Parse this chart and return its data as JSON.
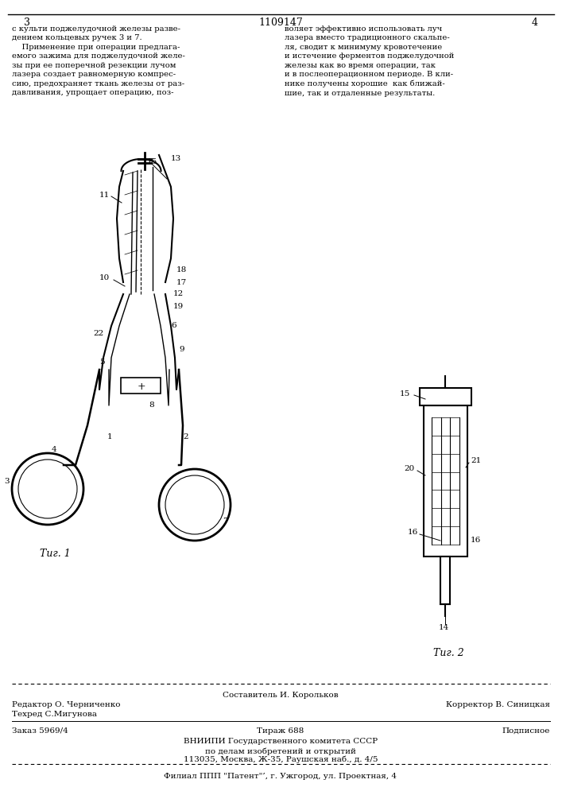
{
  "bg_color": "#ffffff",
  "page_number_left": "3",
  "page_header_center": "1109147",
  "page_number_right": "4",
  "text_left": "с культи поджелудочной железы разве-\nдением кольцевых ручек 3 и 7.\n    Применение при операции предлага-\nемого зажима для поджелудочной желе-\nзы при ее поперечной резекции лучом\nлазера создает равномерную компрес-\nсию, предохраняет ткань железы от раз-\nдавливания, упрощает операцию, поз-",
  "text_right": "воляет эффективно использовать луч\nлазера вместо традиционного скальпе-\nля, сводит к минимуму кровотечение\nи истечение ферментов поджелудочной\nжелезы как во время операции, так\nи в послеоперационном периоде. В кли-\nнике получены хорошие  как ближай-\nшие, так и отдаленные результаты.",
  "fig1_label": "Τиг. 1",
  "fig2_label": "Τиг. 2",
  "footer_line1_left": "Редактор О. Черниченко",
  "footer_line1_center": "Составитель И. Корольков",
  "footer_line1_right": "Корректор В. Синицкая",
  "footer_line2_left": "Техред С.Мигунова",
  "footer_line3_left": "Заказ 5969/4",
  "footer_line3_center": "Тираж 688",
  "footer_line3_right": "Подписное",
  "footer_line4": "ВНИИПИ Государственного комитета СССР",
  "footer_line5": "по делам изобретений и открытий",
  "footer_line6": "113035, Москва, Ж-35, Раушская наб., д. 4/5",
  "footer_line7": "Филиал ППП \"Патент\"’, г. Ужгород, ул. Проектная, 4"
}
